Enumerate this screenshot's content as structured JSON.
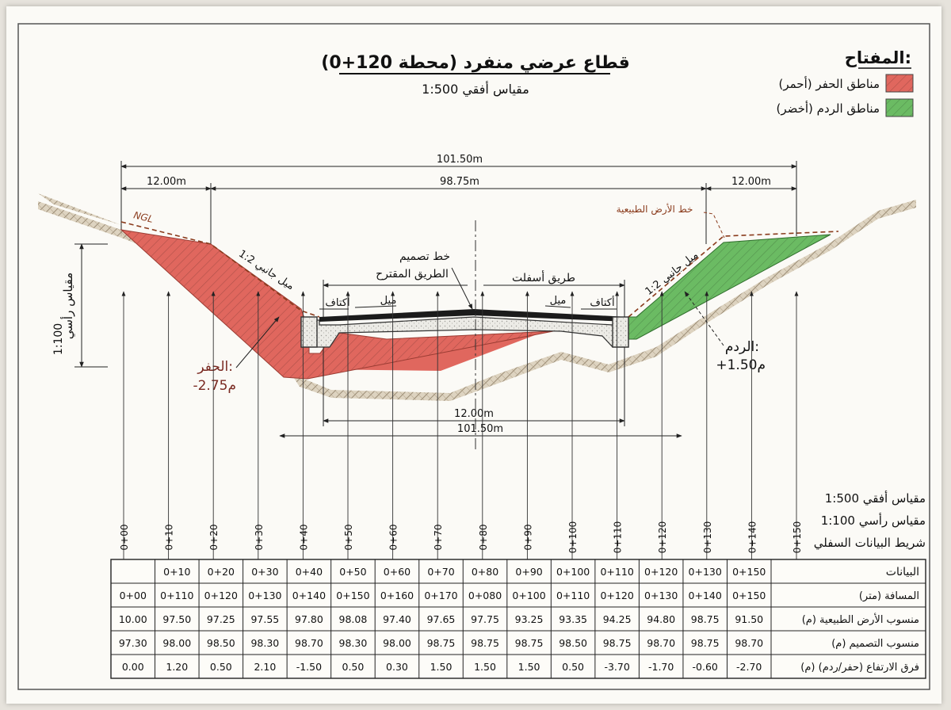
{
  "title": "قطاع عرضي منفرد (محطة 120+0)",
  "subtitle": "مقياس أفقي 1:500",
  "legend": {
    "heading": "المفتاح:",
    "items": [
      {
        "label": "مناطق الحفر (أحمر)",
        "color": "#e0675e"
      },
      {
        "label": "مناطق الردم (أخضر)",
        "color": "#6bbb63"
      }
    ]
  },
  "colors": {
    "cut": "#e0675e",
    "fill": "#6bbb63",
    "ngl": "#8a3b1c",
    "soil": "#b8aa94",
    "asphalt": "#1b1b1b"
  },
  "dimensions": {
    "overall_top": "101.50m",
    "left_width": "12.00m",
    "middle_width": "98.75m",
    "right_width": "12.00m",
    "bottom_inner": "12.00m",
    "bottom_outer": "101.50m"
  },
  "labels": {
    "ngl": "NGL",
    "natural_ground": "خط الأرض الطبيعية",
    "design_line": [
      "خط تصميم",
      "الطريق المقترح"
    ],
    "asphalt_road": "طريق أسفلت",
    "shoulder_left": "أكتاف",
    "slope_left": "ميل",
    "slope_right": "ميل",
    "shoulder_right": "أكتاف",
    "side_slope_left": "ميل جانبي 1:2",
    "side_slope_right": "ميل جانبي 1:2",
    "cut": "الحفر:",
    "cut_value": "-2.75م",
    "fill": "الردم:",
    "fill_value": "+1.50م",
    "vertical_scale_text": "مقياس رأسي",
    "vertical_scale_value": "1:100"
  },
  "scales": {
    "horizontal": "مقياس أفقي 1:500",
    "vertical": "مقياس رأسي 1:100",
    "band": "شريط البيانات السفلي"
  },
  "stations": [
    "0+00",
    "0+10",
    "0+20",
    "0+30",
    "0+40",
    "0+50",
    "0+60",
    "0+70",
    "0+80",
    "0+90",
    "0+100",
    "0+110",
    "0+120",
    "0+130",
    "0+140",
    "0+150"
  ],
  "table": {
    "header_label": "البيانات",
    "header_stations": [
      "",
      "0+10",
      "0+20",
      "0+30",
      "0+40",
      "0+50",
      "0+60",
      "0+70",
      "0+80",
      "0+90",
      "0+100",
      "0+110",
      "0+120",
      "0+130",
      "0+150"
    ],
    "rows": [
      {
        "label": "المسافة (متر)",
        "values": [
          "0+00",
          "0+110",
          "0+120",
          "0+130",
          "0+140",
          "0+150",
          "0+160",
          "0+170",
          "0+080",
          "0+100",
          "0+110",
          "0+120",
          "0+130",
          "0+140",
          "0+150"
        ]
      },
      {
        "label": "منسوب الأرض الطبيعية (م)",
        "values": [
          "10.00",
          "97.50",
          "97.25",
          "97.55",
          "97.80",
          "98.08",
          "97.40",
          "97.65",
          "97.75",
          "93.25",
          "93.35",
          "94.25",
          "94.80",
          "98.75",
          "91.50"
        ]
      },
      {
        "label": "منسوب التصميم (م)",
        "values": [
          "97.30",
          "98.00",
          "98.50",
          "98.30",
          "98.70",
          "98.30",
          "98.00",
          "98.75",
          "98.75",
          "98.75",
          "98.50",
          "98.75",
          "98.70",
          "98.75",
          "98.70"
        ]
      },
      {
        "label": "فرق الارتفاع (حفر/ردم) (م)",
        "values": [
          "0.00",
          "1.20",
          "0.50",
          "2.10",
          "-1.50",
          "0.50",
          "0.30",
          "1.50",
          "1.50",
          "1.50",
          "0.50",
          "-3.70",
          "-1.70",
          "-0.60",
          "-2.70"
        ]
      }
    ]
  }
}
